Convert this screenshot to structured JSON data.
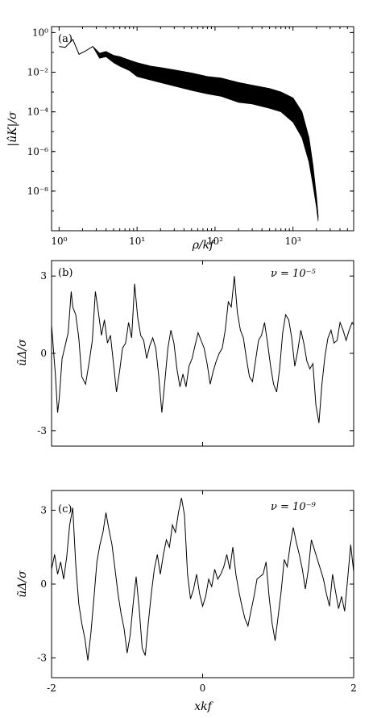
{
  "chart_data": [
    {
      "type": "line",
      "panel_label": "(a)",
      "xlabel": "ρ/k_f",
      "ylabel": "|û_K|/σ",
      "xscale": "log",
      "yscale": "log",
      "xlim": [
        0.8,
        6000
      ],
      "ylim": [
        1e-10,
        2
      ],
      "x_tick_labels": [
        "10^0",
        "10^1",
        "10^2",
        "10^3"
      ],
      "y_tick_labels": [
        "10^0",
        "10^-2",
        "10^-4",
        "10^-6",
        "10^-8"
      ],
      "grid": false,
      "series": [
        {
          "x": [
            1.0,
            1.2,
            1.5,
            1.8,
            2.2,
            2.7,
            3.3,
            4.0,
            5.0,
            6.0,
            8.0,
            10,
            15,
            20,
            30,
            50,
            80,
            120,
            200,
            300,
            500,
            700,
            1000,
            1300,
            1600,
            1800,
            2000,
            2100
          ],
          "y": [
            0.2,
            0.18,
            0.45,
            0.08,
            0.12,
            0.2,
            0.09,
            0.11,
            0.07,
            0.06,
            0.04,
            0.03,
            0.02,
            0.017,
            0.013,
            0.009,
            0.006,
            0.005,
            0.003,
            0.0022,
            0.0015,
            0.001,
            0.0005,
            0.0001,
            5e-06,
            2e-07,
            5e-09,
            5e-10
          ],
          "band_low": [
            0.2,
            0.18,
            0.45,
            0.08,
            0.12,
            0.2,
            0.05,
            0.06,
            0.03,
            0.02,
            0.012,
            0.006,
            0.004,
            0.003,
            0.002,
            0.0012,
            0.0008,
            0.0006,
            0.0003,
            0.00025,
            0.00015,
            0.0001,
            3e-05,
            5e-06,
            3e-07,
            2e-08,
            1.5e-09,
            3e-10
          ]
        }
      ]
    },
    {
      "type": "line",
      "panel_label": "(b)",
      "annotation": "ν = 10^-5",
      "ylabel": "ũ_Δ/σ",
      "xlim": [
        -2,
        2
      ],
      "ylim": [
        -3.6,
        3.6
      ],
      "y_tick_labels": [
        "3",
        "0",
        "-3"
      ],
      "grid": false,
      "series": [
        {
          "x": [
            -2.0,
            -1.95,
            -1.92,
            -1.9,
            -1.86,
            -1.82,
            -1.78,
            -1.74,
            -1.72,
            -1.68,
            -1.64,
            -1.6,
            -1.55,
            -1.5,
            -1.46,
            -1.42,
            -1.38,
            -1.34,
            -1.3,
            -1.26,
            -1.22,
            -1.18,
            -1.14,
            -1.1,
            -1.06,
            -1.02,
            -0.98,
            -0.94,
            -0.9,
            -0.86,
            -0.82,
            -0.78,
            -0.74,
            -0.7,
            -0.66,
            -0.62,
            -0.58,
            -0.54,
            -0.5,
            -0.46,
            -0.42,
            -0.38,
            -0.34,
            -0.3,
            -0.26,
            -0.22,
            -0.18,
            -0.14,
            -0.1,
            -0.06,
            -0.02,
            0.02,
            0.06,
            0.1,
            0.14,
            0.18,
            0.22,
            0.26,
            0.3,
            0.34,
            0.38,
            0.42,
            0.46,
            0.5,
            0.54,
            0.58,
            0.62,
            0.66,
            0.7,
            0.74,
            0.78,
            0.82,
            0.86,
            0.9,
            0.94,
            0.98,
            1.02,
            1.06,
            1.1,
            1.14,
            1.18,
            1.22,
            1.26,
            1.3,
            1.34,
            1.38,
            1.42,
            1.46,
            1.5,
            1.54,
            1.58,
            1.62,
            1.66,
            1.7,
            1.74,
            1.78,
            1.82,
            1.86,
            1.9,
            1.94,
            1.98,
            2.0
          ],
          "y": [
            1.1,
            -0.8,
            -2.3,
            -1.8,
            -0.2,
            0.3,
            0.8,
            2.4,
            1.8,
            1.5,
            0.6,
            -0.9,
            -1.2,
            -0.3,
            0.5,
            2.4,
            1.6,
            0.7,
            1.3,
            0.4,
            0.7,
            -0.4,
            -1.5,
            -0.7,
            0.2,
            0.4,
            1.2,
            0.6,
            2.7,
            1.4,
            0.7,
            0.5,
            -0.2,
            0.3,
            0.6,
            0.2,
            -0.9,
            -2.3,
            -1.1,
            0.2,
            0.9,
            0.4,
            -0.6,
            -1.3,
            -0.8,
            -1.3,
            -0.5,
            -0.2,
            0.3,
            0.8,
            0.5,
            0.2,
            -0.4,
            -1.2,
            -0.7,
            -0.3,
            0.0,
            0.2,
            0.9,
            2.0,
            1.8,
            3.0,
            1.6,
            0.9,
            0.6,
            -0.2,
            -0.9,
            -1.1,
            -0.3,
            0.5,
            0.7,
            1.2,
            0.4,
            -0.5,
            -1.2,
            -1.5,
            -0.6,
            0.8,
            1.5,
            1.3,
            0.6,
            -0.5,
            0.1,
            0.9,
            0.4,
            -0.3,
            -0.6,
            -0.4,
            -2.0,
            -2.7,
            -1.2,
            -0.1,
            0.6,
            0.9,
            0.4,
            0.5,
            1.2,
            0.9,
            0.5,
            0.9,
            1.2,
            1.1
          ]
        }
      ]
    },
    {
      "type": "line",
      "panel_label": "(c)",
      "annotation": "ν = 10^-9",
      "xlabel": "xk_f",
      "ylabel": "ũ_Δ/σ",
      "xlim": [
        -2,
        2
      ],
      "ylim": [
        -3.8,
        3.8
      ],
      "x_tick_labels": [
        "-2",
        "0",
        "2"
      ],
      "y_tick_labels": [
        "3",
        "0",
        "-3"
      ],
      "grid": false,
      "series": [
        {
          "x": [
            -2.0,
            -1.96,
            -1.92,
            -1.88,
            -1.84,
            -1.8,
            -1.76,
            -1.72,
            -1.68,
            -1.64,
            -1.6,
            -1.56,
            -1.52,
            -1.48,
            -1.44,
            -1.4,
            -1.36,
            -1.32,
            -1.28,
            -1.24,
            -1.2,
            -1.16,
            -1.12,
            -1.08,
            -1.04,
            -1.0,
            -0.96,
            -0.92,
            -0.88,
            -0.84,
            -0.8,
            -0.76,
            -0.72,
            -0.68,
            -0.64,
            -0.6,
            -0.56,
            -0.52,
            -0.48,
            -0.44,
            -0.4,
            -0.36,
            -0.32,
            -0.28,
            -0.24,
            -0.2,
            -0.16,
            -0.12,
            -0.08,
            -0.04,
            0.0,
            0.04,
            0.08,
            0.12,
            0.16,
            0.2,
            0.24,
            0.28,
            0.32,
            0.36,
            0.4,
            0.44,
            0.48,
            0.52,
            0.56,
            0.6,
            0.64,
            0.68,
            0.72,
            0.76,
            0.8,
            0.84,
            0.88,
            0.92,
            0.96,
            1.0,
            1.04,
            1.08,
            1.12,
            1.16,
            1.2,
            1.24,
            1.28,
            1.32,
            1.36,
            1.4,
            1.44,
            1.48,
            1.52,
            1.56,
            1.6,
            1.64,
            1.68,
            1.72,
            1.76,
            1.8,
            1.84,
            1.88,
            1.92,
            1.96,
            2.0
          ],
          "y": [
            0.6,
            1.2,
            0.4,
            0.9,
            0.2,
            1.1,
            2.4,
            3.1,
            0.8,
            -0.8,
            -1.6,
            -2.2,
            -3.1,
            -2.0,
            -0.6,
            0.9,
            1.6,
            2.1,
            2.9,
            2.2,
            1.6,
            0.6,
            -0.4,
            -1.2,
            -1.8,
            -2.8,
            -2.1,
            -0.8,
            0.3,
            -1.0,
            -2.6,
            -2.9,
            -1.6,
            -0.4,
            0.6,
            1.2,
            0.4,
            1.2,
            1.8,
            1.5,
            2.4,
            2.1,
            2.9,
            3.5,
            2.8,
            0.4,
            -0.6,
            -0.2,
            0.4,
            -0.4,
            -0.9,
            -0.5,
            0.2,
            -0.1,
            0.6,
            0.2,
            0.4,
            0.7,
            1.2,
            0.6,
            1.5,
            0.4,
            -0.3,
            -0.9,
            -1.4,
            -1.7,
            -1.1,
            -0.5,
            0.2,
            0.3,
            0.4,
            0.9,
            -0.5,
            -1.6,
            -2.3,
            -1.3,
            -0.3,
            1.0,
            0.7,
            1.6,
            2.3,
            1.7,
            1.2,
            0.6,
            -0.2,
            0.6,
            1.8,
            1.4,
            1.0,
            0.6,
            0.2,
            -0.4,
            -0.9,
            0.4,
            -0.3,
            -1.0,
            -0.5,
            -1.1,
            0.2,
            1.6,
            0.5
          ]
        }
      ]
    }
  ]
}
